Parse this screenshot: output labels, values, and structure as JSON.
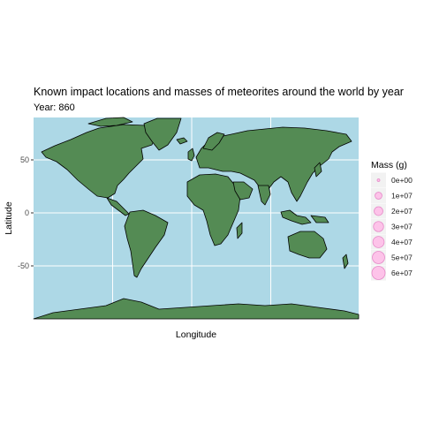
{
  "chart_data": {
    "type": "scatter",
    "title": "Known impact locations and masses of meteorites around the world by year",
    "subtitle": "Year: 860",
    "xlabel": "Longitude",
    "ylabel": "Latitude",
    "xlim": [
      -180,
      190
    ],
    "ylim": [
      -100,
      90
    ],
    "y_ticks": [
      50,
      0,
      -50
    ],
    "x_ticks": [],
    "grid": true,
    "points": [],
    "legend": {
      "title": "Mass (g)",
      "position": "right",
      "entries": [
        "0e+00",
        "1e+07",
        "2e+07",
        "3e+07",
        "4e+07",
        "5e+07",
        "6e+07"
      ],
      "values": [
        0,
        10000000,
        20000000,
        30000000,
        40000000,
        50000000,
        60000000
      ]
    },
    "colors": {
      "ocean": "#add8e6",
      "land": "#548b54",
      "border": "#000000",
      "grid": "#ffffff",
      "point_fill": "#ffb6e6",
      "point_stroke": "#e58ac8"
    }
  }
}
